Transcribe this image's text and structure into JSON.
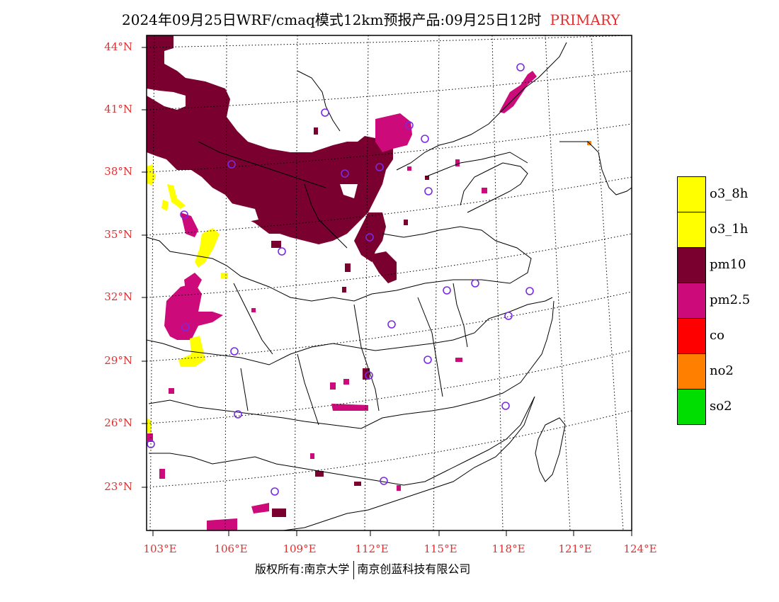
{
  "title": {
    "main": "2024年09月25日WRF/cmaq模式12km预报产品:09月25日12时",
    "mode": "PRIMARY"
  },
  "axes": {
    "lat_labels": [
      "44°N",
      "41°N",
      "38°N",
      "35°N",
      "32°N",
      "29°N",
      "26°N",
      "23°N"
    ],
    "lon_labels": [
      "103°E",
      "106°E",
      "109°E",
      "112°E",
      "115°E",
      "118°E",
      "121°E",
      "124°E"
    ]
  },
  "legend": {
    "items": [
      {
        "label": "o3_8h",
        "color": "#ffff00"
      },
      {
        "label": "o3_1h",
        "color": "#ffff00"
      },
      {
        "label": "pm10",
        "color": "#7a0030"
      },
      {
        "label": "pm2.5",
        "color": "#cc0a7a"
      },
      {
        "label": "co",
        "color": "#ff0000"
      },
      {
        "label": "no2",
        "color": "#ff8000"
      },
      {
        "label": "so2",
        "color": "#00dd00"
      }
    ]
  },
  "stations": {
    "color": "#7a2be2",
    "icon": "circle-marker-icon"
  },
  "footer": {
    "left": "版权所有:南京大学",
    "right": "南京创蓝科技有限公司"
  }
}
